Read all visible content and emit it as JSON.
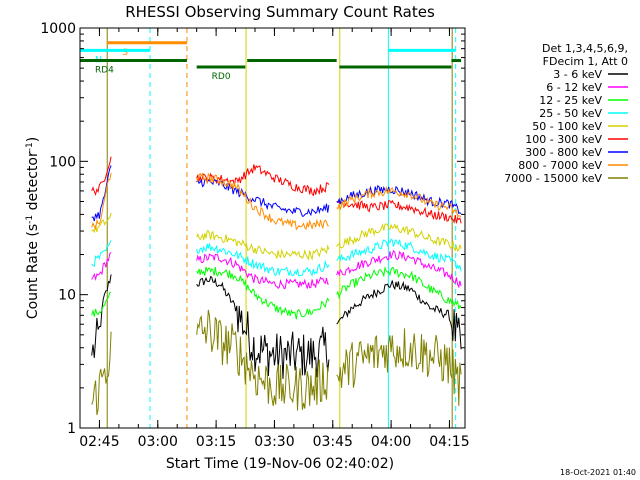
{
  "chart_data": {
    "type": "line",
    "title": "RHESSI Observing Summary Count Rates",
    "xlabel": "Start Time (19-Nov-06 02:40:02)",
    "ylabel_parts": [
      "Count Rate (s",
      "-1",
      " detector",
      "-1",
      ")"
    ],
    "yscale": "log",
    "ylim": [
      1,
      1000
    ],
    "y_ticks": [
      {
        "value": 1,
        "label": "1"
      },
      {
        "value": 10,
        "label": "10"
      },
      {
        "value": 100,
        "label": "100"
      },
      {
        "value": 1000,
        "label": "1000"
      }
    ],
    "x_unit": "minutes after 02:40:02",
    "xlim": [
      0,
      99
    ],
    "x_ticks": [
      {
        "value": 5,
        "label": "02:45"
      },
      {
        "value": 20,
        "label": "03:00"
      },
      {
        "value": 35,
        "label": "03:15"
      },
      {
        "value": 50,
        "label": "03:30"
      },
      {
        "value": 65,
        "label": "03:45"
      },
      {
        "value": 80,
        "label": "04:00"
      },
      {
        "value": 95,
        "label": "04:15"
      }
    ],
    "legend": {
      "placement": "right",
      "header": [
        "Det 1,3,4,5,6,9,",
        "FDecim 1, Att 0"
      ]
    },
    "series": [
      {
        "name": "3 - 6 keV",
        "color": "#000000",
        "x": [
          0,
          3,
          5,
          6,
          7,
          8,
          30,
          30,
          33,
          36,
          40,
          45,
          50,
          55,
          60,
          64,
          66,
          66,
          70,
          75,
          80,
          85,
          90,
          95,
          98
        ],
        "y": [
          null,
          3.5,
          5,
          9,
          11,
          14,
          null,
          12,
          13,
          12,
          8,
          4,
          3.5,
          3.5,
          3.5,
          4,
          null,
          6,
          8,
          10,
          12,
          11,
          8,
          7,
          4
        ]
      },
      {
        "name": "6 - 12 keV",
        "color": "#ff00ff",
        "x": [
          0,
          3,
          5,
          6,
          7,
          8,
          30,
          30,
          33,
          36,
          40,
          45,
          50,
          55,
          60,
          64,
          66,
          66,
          70,
          75,
          80,
          85,
          90,
          95,
          98
        ],
        "y": [
          null,
          13,
          14,
          16,
          18,
          20,
          null,
          18,
          19,
          19,
          17,
          13,
          12,
          12,
          12,
          13,
          null,
          14,
          16,
          18,
          20,
          19,
          16,
          14,
          12
        ]
      },
      {
        "name": "12 - 25 keV",
        "color": "#00ff00",
        "x": [
          0,
          3,
          5,
          6,
          7,
          8,
          30,
          30,
          33,
          36,
          40,
          45,
          50,
          55,
          60,
          64,
          66,
          66,
          70,
          75,
          80,
          85,
          90,
          95,
          98
        ],
        "y": [
          null,
          7,
          7.5,
          8,
          9,
          10,
          null,
          15,
          15,
          15,
          14,
          10,
          8,
          7,
          7.5,
          9,
          null,
          10,
          12,
          14,
          15,
          14,
          11,
          9,
          8
        ]
      },
      {
        "name": "25 - 50 keV",
        "color": "#00ffff",
        "x": [
          0,
          3,
          5,
          6,
          7,
          8,
          30,
          30,
          33,
          36,
          40,
          45,
          50,
          55,
          60,
          64,
          66,
          66,
          70,
          75,
          80,
          85,
          90,
          95,
          98
        ],
        "y": [
          null,
          17,
          19,
          20,
          22,
          24,
          null,
          22,
          23,
          22,
          20,
          17,
          15,
          15,
          15,
          17,
          null,
          18,
          20,
          22,
          25,
          23,
          20,
          18,
          16
        ]
      },
      {
        "name": "50 - 100 keV",
        "color": "#d2d200",
        "x": [
          0,
          3,
          5,
          6,
          7,
          8,
          30,
          30,
          33,
          36,
          40,
          45,
          50,
          55,
          60,
          64,
          66,
          66,
          70,
          75,
          80,
          85,
          90,
          95,
          98
        ],
        "y": [
          null,
          30,
          32,
          34,
          36,
          38,
          null,
          27,
          28,
          27,
          25,
          22,
          20,
          20,
          20,
          22,
          null,
          23,
          26,
          30,
          32,
          30,
          26,
          24,
          22
        ]
      },
      {
        "name": "100 - 300 keV",
        "color": "#ff0000",
        "x": [
          0,
          3,
          5,
          6,
          7,
          8,
          30,
          30,
          33,
          36,
          40,
          45,
          50,
          55,
          60,
          64,
          66,
          66,
          70,
          75,
          80,
          85,
          90,
          95,
          98
        ],
        "y": [
          null,
          60,
          62,
          70,
          90,
          110,
          null,
          75,
          75,
          74,
          70,
          90,
          75,
          65,
          60,
          65,
          null,
          50,
          48,
          45,
          47,
          45,
          40,
          38,
          35
        ]
      },
      {
        "name": "300 - 800 keV",
        "color": "#0000ff",
        "x": [
          0,
          3,
          5,
          6,
          7,
          8,
          30,
          30,
          33,
          36,
          40,
          45,
          50,
          55,
          60,
          64,
          66,
          66,
          70,
          75,
          80,
          85,
          90,
          95,
          98
        ],
        "y": [
          null,
          38,
          40,
          50,
          70,
          90,
          null,
          70,
          70,
          68,
          60,
          52,
          45,
          42,
          42,
          45,
          null,
          50,
          55,
          60,
          62,
          58,
          50,
          48,
          42
        ]
      },
      {
        "name": "800 - 7000 keV",
        "color": "#ff8c00",
        "x": [
          0,
          3,
          5,
          6,
          7,
          8,
          30,
          30,
          33,
          36,
          40,
          45,
          50,
          55,
          60,
          64,
          66,
          66,
          70,
          75,
          80,
          85,
          90,
          95,
          98
        ],
        "y": [
          null,
          32,
          34,
          45,
          65,
          85,
          null,
          75,
          75,
          72,
          65,
          45,
          36,
          33,
          33,
          35,
          null,
          45,
          52,
          58,
          60,
          57,
          48,
          45,
          38
        ]
      },
      {
        "name": "7000 - 15000 keV",
        "color": "#808000",
        "x": [
          0,
          3,
          5,
          6,
          7,
          8,
          30,
          30,
          33,
          36,
          40,
          45,
          50,
          55,
          60,
          64,
          66,
          66,
          70,
          75,
          80,
          85,
          90,
          95,
          98
        ],
        "y": [
          null,
          1.5,
          2,
          2.5,
          3,
          4,
          null,
          5,
          5.5,
          4.5,
          4,
          2.5,
          2,
          2,
          2,
          2.5,
          null,
          2.5,
          3,
          3.5,
          4,
          4,
          3.5,
          3,
          2
        ]
      }
    ],
    "vertical_lines": [
      {
        "x": 7,
        "color": "#808000",
        "style": "solid"
      },
      {
        "x": 18,
        "color": "#00ffff",
        "style": "dashed"
      },
      {
        "x": 27.5,
        "color": "#ff8c00",
        "style": "dashed"
      },
      {
        "x": 42.7,
        "color": "#d2d200",
        "style": "solid"
      },
      {
        "x": 66.8,
        "color": "#d2d200",
        "style": "solid"
      },
      {
        "x": 79.3,
        "color": "#00ffff",
        "style": "solid"
      },
      {
        "x": 95.7,
        "color": "#808000",
        "style": "solid"
      },
      {
        "x": 96.6,
        "color": "#00ffff",
        "style": "dashed"
      }
    ],
    "flag_bars": [
      {
        "x0": 7,
        "x1": 27.5,
        "value": 775,
        "color": "#ff8c00",
        "label": "S"
      },
      {
        "x0": 0,
        "x1": 18,
        "value": 680,
        "color": "#00ffff",
        "label": "N"
      },
      {
        "x0": 79.3,
        "x1": 96.6,
        "value": 680,
        "color": "#00ffff"
      },
      {
        "x0": 0,
        "x1": 27.5,
        "value": 570,
        "color": "#006400",
        "label": "RD4"
      },
      {
        "x0": 30,
        "x1": 42.5,
        "value": 510,
        "color": "#006400",
        "label": "RD0"
      },
      {
        "x0": 43,
        "x1": 66,
        "value": 570,
        "color": "#006400"
      },
      {
        "x0": 66.7,
        "x1": 95.5,
        "value": 510,
        "color": "#006400"
      },
      {
        "x0": 95.5,
        "x1": 98,
        "value": 570,
        "color": "#006400"
      }
    ]
  },
  "footer_timestamp": "18-Oct-2021 01:40"
}
